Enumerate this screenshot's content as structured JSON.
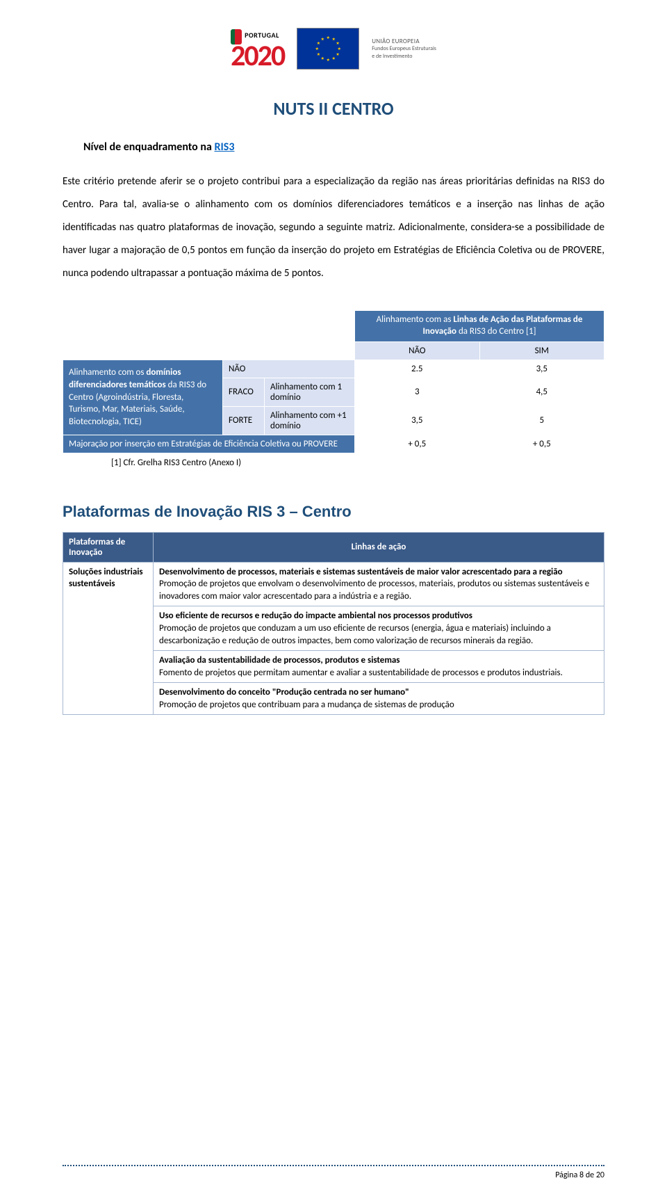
{
  "header": {
    "pt2020_label": "PORTUGAL",
    "pt2020_year": "2020",
    "eu_line1": "UNIÃO EUROPEIA",
    "eu_line2a": "Fundos Europeus Estruturais",
    "eu_line2b": "e de Investimento"
  },
  "title": "NUTS II CENTRO",
  "subheading_prefix": "Nível de enquadramento na ",
  "subheading_link": "RIS3",
  "paragraph": "Este critério pretende aferir se o projeto contribui para a especialização da região nas áreas prioritárias definidas na RIS3 do Centro. Para tal, avalia-se o alinhamento com os domínios diferenciadores temáticos e a inserção nas linhas de ação identificadas nas quatro plataformas de inovação, segundo a seguinte matriz. Adicionalmente, considera-se a possibilidade de haver lugar a majoração de 0,5 pontos em função da inserção do projeto em Estratégias de Eficiência Coletiva ou de PROVERE, nunca podendo ultrapassar a pontuação máxima de 5 pontos.",
  "matrix": {
    "top_header_html": "Alinhamento com as <b>Linhas de Ação das Plataformas de Inovação</b> da RIS3 do Centro [1]",
    "col_nao": "NÃO",
    "col_sim": "SIM",
    "side_html": "Alinhamento com os <b>domínios diferenciadores temáticos</b> da RIS3 do Centro (Agroindústria, Floresta, Turismo, Mar, Materiais, Saúde, Biotecnologia, TICE)",
    "row_nao": "NÃO",
    "row_fraco": "FRACO",
    "row_forte": "FORTE",
    "fraco_desc": "Alinhamento com 1 domínio",
    "forte_desc": "Alinhamento com +1 domínio",
    "major_label": "Majoração por inserção em Estratégias de Eficiência Coletiva ou PROVERE",
    "vals": {
      "nao_nao": "2.5",
      "nao_sim": "3,5",
      "fraco_nao": "3",
      "fraco_sim": "4,5",
      "forte_nao": "3,5",
      "forte_sim": "5",
      "major_nao": "+ 0,5",
      "major_sim": "+ 0,5"
    },
    "footnote": "[1] Cfr. Grelha RIS3 Centro (Anexo I)"
  },
  "plat_heading": "Plataformas de Inovação RIS 3 – Centro",
  "plat_table": {
    "col1": "Plataformas de Inovação",
    "col2": "Linhas de ação",
    "row1_name": "Soluções industriais sustentáveis",
    "cell1_b": "Desenvolvimento de processos, materiais e sistemas sustentáveis de maior valor acrescentado para a região",
    "cell1_t": "Promoção de projetos que envolvam o desenvolvimento de processos, materiais, produtos ou sistemas sustentáveis e inovadores com maior valor acrescentado para a indústria e a região.",
    "cell2_b": "Uso eficiente de recursos e redução do impacte ambiental nos processos produtivos",
    "cell2_t": "Promoção de projetos que conduzam a um uso eficiente de recursos (energia, água e materiais) incluindo a descarbonização e redução de outros impactes, bem como valorização de recursos minerais da região.",
    "cell3_b": "Avaliação da sustentabilidade de processos, produtos e sistemas",
    "cell3_t": "Fomento de projetos que permitam aumentar e avaliar a sustentabilidade de processos e produtos industriais.",
    "cell4_b": "Desenvolvimento do conceito \"Produção centrada no ser humano\"",
    "cell4_t": "Promoção de projetos que contribuam para a mudança de sistemas de produção"
  },
  "footer": {
    "page": "Página 8 de 20"
  },
  "colors": {
    "title_blue": "#1f4e79",
    "table_dark": "#4472a8",
    "table_light": "#d9e1f2",
    "plat_header": "#3a5a88",
    "border_gray": "#a6b8d0"
  }
}
